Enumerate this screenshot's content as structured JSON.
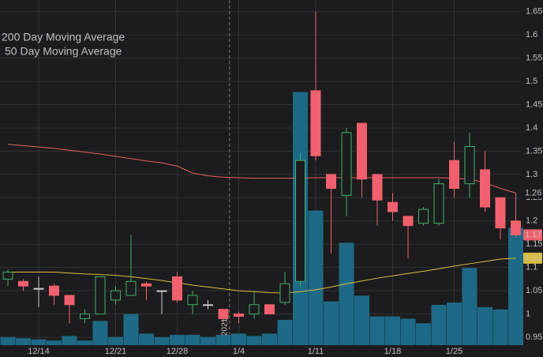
{
  "chart_data": {
    "type": "candlestick",
    "year_label": "2021",
    "categories": [
      null,
      null,
      "12/14",
      null,
      null,
      null,
      null,
      "12/21",
      null,
      null,
      null,
      "12/28",
      null,
      null,
      null,
      "1/4",
      null,
      null,
      null,
      null,
      "1/11",
      null,
      null,
      null,
      null,
      "1/18",
      null,
      null,
      null,
      "1/25",
      null,
      null,
      null,
      null
    ],
    "open": [
      1.075,
      1.07,
      1.055,
      1.06,
      1.04,
      0.99,
      1.0,
      1.03,
      1.04,
      1.065,
      1.05,
      1.08,
      1.02,
      1.02,
      1.01,
      1.0,
      1.0,
      1.02,
      1.025,
      1.07,
      1.48,
      1.3,
      1.255,
      1.41,
      1.3,
      1.24,
      1.21,
      1.195,
      1.195,
      1.33,
      1.28,
      1.31,
      1.25,
      1.2
    ],
    "high": [
      1.095,
      1.075,
      1.08,
      1.065,
      1.04,
      1.01,
      1.08,
      1.06,
      1.17,
      1.07,
      1.05,
      1.09,
      1.05,
      1.03,
      1.01,
      1.005,
      1.05,
      1.02,
      1.09,
      1.345,
      1.65,
      1.3,
      1.4,
      1.41,
      1.3,
      1.26,
      1.21,
      1.23,
      1.29,
      1.37,
      1.39,
      1.35,
      1.25,
      1.26
    ],
    "low": [
      1.06,
      1.05,
      1.015,
      1.02,
      0.98,
      0.98,
      1.0,
      1.02,
      1.04,
      1.03,
      1.0,
      1.025,
      1.0,
      1.01,
      0.98,
      0.98,
      0.99,
      1.0,
      1.02,
      1.06,
      1.33,
      1.13,
      1.21,
      1.25,
      1.19,
      1.2,
      1.12,
      1.19,
      1.19,
      1.25,
      1.25,
      1.22,
      1.16,
      1.165
    ],
    "close": [
      1.09,
      1.06,
      1.055,
      1.04,
      1.02,
      1.0,
      1.08,
      1.05,
      1.07,
      1.06,
      1.05,
      1.03,
      1.04,
      1.02,
      0.99,
      0.995,
      1.02,
      1.0,
      1.065,
      1.33,
      1.34,
      1.27,
      1.39,
      1.29,
      1.245,
      1.22,
      1.19,
      1.225,
      1.28,
      1.27,
      1.36,
      1.23,
      1.185,
      1.17
    ],
    "volume": [
      7,
      6,
      5,
      4,
      8,
      4,
      21,
      7,
      27,
      10,
      7,
      9,
      9,
      7,
      9,
      10,
      8,
      10,
      22,
      220,
      117,
      38,
      89,
      43,
      25,
      25,
      23,
      19,
      35,
      37,
      67,
      33,
      31,
      102
    ],
    "volume_ylim": [
      0,
      300
    ],
    "volume_color": "#1e6a86",
    "up_color": "#3fae6a",
    "down_color": "#f0606e",
    "series": [
      {
        "name": "200 Day Moving Average",
        "color": "#e0605c",
        "values": [
          1.365,
          1.362,
          1.359,
          1.356,
          1.352,
          1.348,
          1.344,
          1.339,
          1.334,
          1.329,
          1.325,
          1.318,
          1.303,
          1.297,
          1.294,
          1.293,
          1.292,
          1.292,
          1.292,
          1.292,
          1.293,
          1.293,
          1.293,
          1.293,
          1.293,
          1.293,
          1.293,
          1.293,
          1.293,
          1.292,
          1.29,
          1.282,
          1.27,
          1.26
        ]
      },
      {
        "name": "50 Day Moving Average",
        "color": "#d9bb3e",
        "values": [
          1.09,
          1.09,
          1.09,
          1.09,
          1.088,
          1.086,
          1.085,
          1.083,
          1.08,
          1.076,
          1.072,
          1.067,
          1.062,
          1.058,
          1.054,
          1.05,
          1.048,
          1.046,
          1.045,
          1.048,
          1.052,
          1.058,
          1.065,
          1.071,
          1.077,
          1.082,
          1.087,
          1.092,
          1.097,
          1.103,
          1.108,
          1.113,
          1.118,
          1.12
        ]
      }
    ],
    "ylim": [
      0.933,
      1.675
    ],
    "yticks": [
      0.95,
      1,
      1.05,
      1.1,
      1.15,
      1.2,
      1.25,
      1.3,
      1.35,
      1.4,
      1.45,
      1.5,
      1.55,
      1.6,
      1.65
    ],
    "grid": true
  }
}
